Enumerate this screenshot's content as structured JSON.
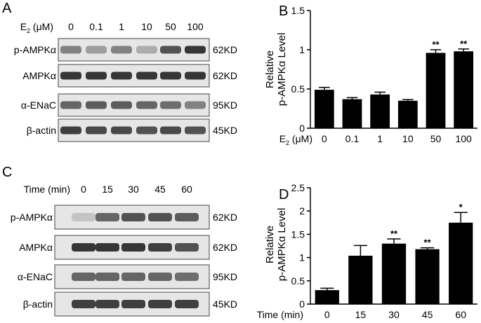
{
  "panels": {
    "A": {
      "letter": "A",
      "condition_label": "E2 (μM)",
      "condition_main": "E",
      "condition_sub": "2",
      "condition_rest": " (μM)",
      "lanes": [
        "0",
        "0.1",
        "1",
        "10",
        "50",
        "100"
      ],
      "blots": [
        {
          "label": "p-AMPKα",
          "size": "62KD",
          "intensity": [
            0.45,
            0.3,
            0.45,
            0.22,
            0.7,
            0.85
          ]
        },
        {
          "label": "AMPKα",
          "size": "62KD",
          "intensity": [
            0.85,
            0.85,
            0.85,
            0.85,
            0.85,
            0.85
          ]
        },
        {
          "label": "α-ENaC",
          "size": "95KD",
          "intensity": [
            0.6,
            0.65,
            0.65,
            0.6,
            0.55,
            0.45
          ]
        },
        {
          "label": "β-actin",
          "size": "45KD",
          "intensity": [
            0.8,
            0.75,
            0.75,
            0.7,
            0.75,
            0.7
          ]
        }
      ]
    },
    "C": {
      "letter": "C",
      "condition_label": "Time (min)",
      "lanes": [
        "0",
        "15",
        "30",
        "45",
        "60"
      ],
      "blots": [
        {
          "label": "p-AMPKα",
          "size": "62KD",
          "intensity": [
            0.1,
            0.6,
            0.7,
            0.7,
            0.65
          ]
        },
        {
          "label": "AMPKα",
          "size": "62KD",
          "intensity": [
            0.85,
            0.85,
            0.85,
            0.8,
            0.7
          ]
        },
        {
          "label": "α-ENaC",
          "size": "95KD",
          "intensity": [
            0.6,
            0.6,
            0.6,
            0.6,
            0.55
          ]
        },
        {
          "label": "β-actin",
          "size": "45KD",
          "intensity": [
            0.8,
            0.8,
            0.8,
            0.8,
            0.8
          ]
        }
      ]
    }
  },
  "chart_data": [
    {
      "panel": "B",
      "letter": "B",
      "type": "bar",
      "ylabel_line1": "Relative",
      "ylabel_line2": "p-AMPKα Level",
      "xlabel": "E2 (μM)",
      "xlabel_main": "E",
      "xlabel_sub": "2",
      "xlabel_rest": " (μM)",
      "categories": [
        "0",
        "0.1",
        "1",
        "10",
        "50",
        "100"
      ],
      "values": [
        0.49,
        0.37,
        0.43,
        0.35,
        0.96,
        0.98
      ],
      "errors": [
        0.03,
        0.02,
        0.03,
        0.015,
        0.04,
        0.03
      ],
      "significance": [
        "",
        "",
        "",
        "",
        "**",
        "**"
      ],
      "ylim": [
        0,
        1.5
      ],
      "yticks": [
        0,
        0.5,
        1,
        1.5
      ],
      "ytick_labels": [
        "0",
        "0.5",
        "1",
        "1.5"
      ],
      "bar_color": "#000000",
      "grid": false
    },
    {
      "panel": "D",
      "letter": "D",
      "type": "bar",
      "ylabel_line1": "Relative",
      "ylabel_line2": "p-AMPKα Level",
      "xlabel": "Time (min)",
      "categories": [
        "0",
        "15",
        "30",
        "45",
        "60"
      ],
      "values": [
        0.3,
        1.04,
        1.3,
        1.18,
        1.75
      ],
      "errors": [
        0.04,
        0.22,
        0.1,
        0.03,
        0.22
      ],
      "significance": [
        "",
        "",
        "**",
        "**",
        "*"
      ],
      "ylim": [
        0,
        2.5
      ],
      "yticks": [
        0,
        0.5,
        1,
        1.5,
        2,
        2.5
      ],
      "ytick_labels": [
        "0",
        "0.5",
        "1",
        "1.5",
        "2",
        "2.5"
      ],
      "bar_color": "#000000",
      "grid": false
    }
  ]
}
